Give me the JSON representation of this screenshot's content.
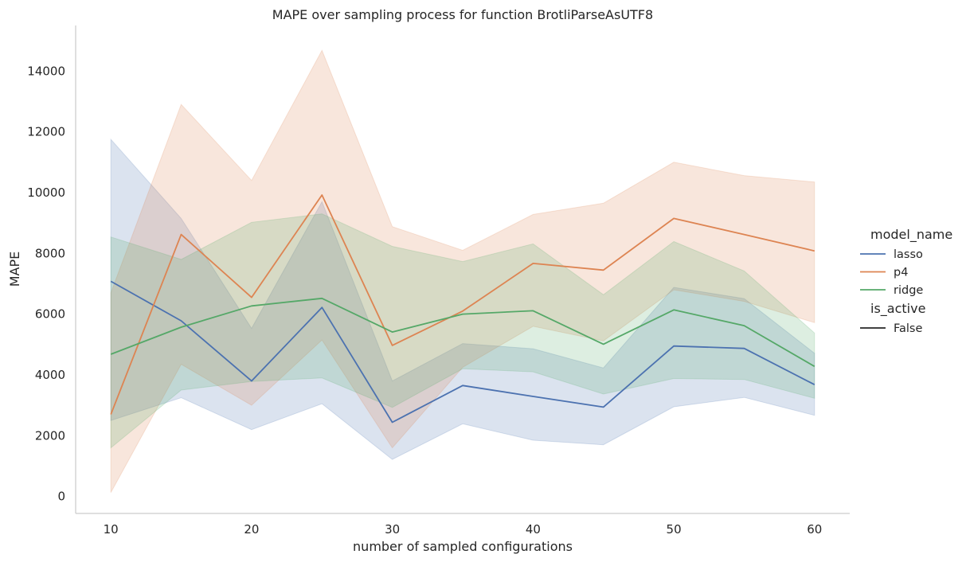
{
  "chart_data": {
    "type": "line",
    "title": "MAPE over sampling process for function BrotliParseAsUTF8",
    "xlabel": "number of sampled configurations",
    "ylabel": "MAPE",
    "xlim": [
      7.5,
      62.5
    ],
    "ylim": [
      -560,
      15500
    ],
    "x_ticks": [
      10,
      20,
      30,
      40,
      50,
      60
    ],
    "y_ticks": [
      0,
      2000,
      4000,
      6000,
      8000,
      10000,
      12000,
      14000
    ],
    "grid": false,
    "legend": {
      "position": "right",
      "hue_title": "model_name",
      "style_title": "is_active",
      "style_entries": [
        "False"
      ]
    },
    "x": [
      10,
      15,
      20,
      25,
      30,
      35,
      40,
      45,
      50,
      55,
      60
    ],
    "series": [
      {
        "name": "lasso",
        "color": "#4c72b0",
        "values": [
          7080,
          5780,
          3800,
          6220,
          2440,
          3650,
          3290,
          2940,
          4950,
          4870,
          3680
        ],
        "lower": [
          2500,
          3250,
          2200,
          3050,
          1220,
          2390,
          1850,
          1700,
          2950,
          3260,
          2670
        ],
        "upper": [
          11750,
          9150,
          5530,
          9700,
          3800,
          5030,
          4860,
          4230,
          6880,
          6510,
          4710
        ]
      },
      {
        "name": "p4",
        "color": "#dd8452",
        "values": [
          2700,
          8620,
          6550,
          9920,
          4970,
          6100,
          7670,
          7450,
          9150,
          8620,
          8080
        ],
        "lower": [
          130,
          4350,
          3000,
          5150,
          1600,
          4250,
          5600,
          5120,
          6800,
          6420,
          5720
        ],
        "upper": [
          6700,
          12900,
          10400,
          14680,
          8880,
          8100,
          9280,
          9650,
          11000,
          10560,
          10350
        ]
      },
      {
        "name": "ridge",
        "color": "#55a868",
        "values": [
          4680,
          5570,
          6270,
          6520,
          5410,
          6000,
          6110,
          5010,
          6140,
          5620,
          4280
        ],
        "lower": [
          1600,
          3500,
          3780,
          3900,
          2930,
          4200,
          4100,
          3370,
          3880,
          3850,
          3230
        ],
        "upper": [
          8540,
          7800,
          9020,
          9300,
          8230,
          7730,
          8310,
          6640,
          8390,
          7420,
          5380
        ]
      }
    ]
  }
}
